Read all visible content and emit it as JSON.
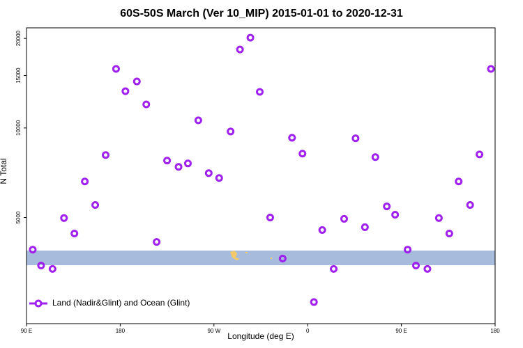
{
  "chart_data": {
    "type": "scatter",
    "title": "60S-50S March (Ver 10_MIP)   2015-01-01 to 2020-12-31",
    "x_label": "Longitude (deg E)",
    "y_label": "N Total",
    "xlim": [
      90,
      540
    ],
    "xticks": [
      {
        "value": 90,
        "label": "90 E"
      },
      180,
      {
        "value": 270,
        "label": "90 W"
      },
      {
        "value": 360,
        "label": "0"
      },
      {
        "value": 450,
        "label": "90 E"
      },
      {
        "value": 540,
        "label": "180"
      }
    ],
    "ylim": [
      2200,
      21700
    ],
    "yticks": [
      5000,
      10000,
      15000,
      20000
    ],
    "log_y": true,
    "legend": "bottom-left",
    "series": [
      {
        "name": "Land (Nadir&Glint) and Ocean (Glint)",
        "color": "#a020f0",
        "x": [
          96,
          104,
          115,
          126,
          136,
          146,
          156,
          166,
          176,
          185,
          196,
          205,
          215,
          225,
          236,
          245,
          255,
          265,
          275,
          286,
          295,
          305,
          314,
          324,
          336,
          345,
          355,
          366,
          374,
          385,
          395,
          406,
          415,
          425,
          436,
          444,
          456,
          464,
          475,
          486,
          496,
          505,
          516,
          525,
          536
        ],
        "values": [
          3900,
          3450,
          3360,
          4980,
          4420,
          6610,
          5510,
          8110,
          15790,
          13290,
          14330,
          12000,
          4140,
          7770,
          7400,
          7600,
          10610,
          7050,
          6790,
          9730,
          18350,
          20110,
          13220,
          5000,
          3640,
          9270,
          8200,
          2600,
          4540,
          3360,
          4950,
          9230,
          4640,
          7980,
          5450,
          5110,
          3900,
          3450,
          3360,
          4980,
          4420,
          6610,
          5510,
          8150,
          15790
        ]
      }
    ]
  }
}
